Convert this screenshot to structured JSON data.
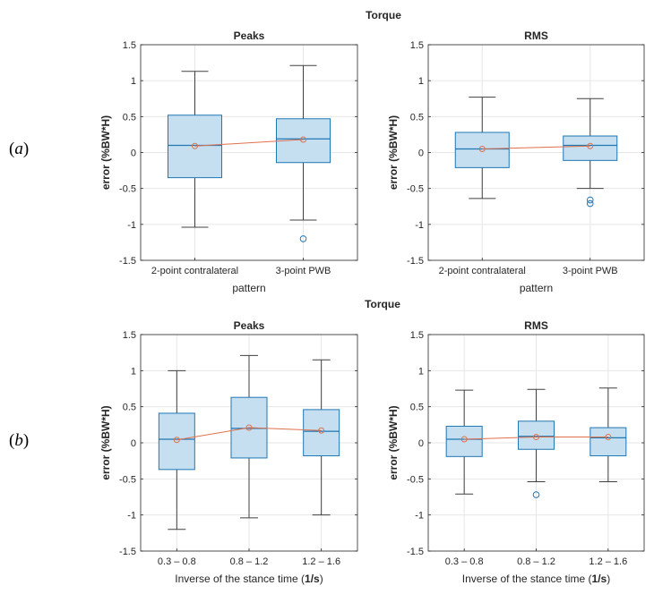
{
  "panels": [
    {
      "label": "(a)",
      "open": "(",
      "letter": "a",
      "close": ")"
    },
    {
      "label": "(b)",
      "open": "(",
      "letter": "b",
      "close": ")"
    }
  ],
  "colors": {
    "box_fill": "#c6dff0",
    "box_edge": "#1f77b4",
    "median": "#1f77b4",
    "whisker": "#404040",
    "mean_line": "#e0704a",
    "mean_marker": "#e0704a",
    "outlier": "#1f77b4",
    "grid": "#e6e6e6",
    "axis": "#262626"
  },
  "chart_data": [
    {
      "type": "box",
      "group_title": "Torque",
      "title": "Peaks",
      "xlabel": "pattern",
      "xlabel_parts": [
        "pattern"
      ],
      "ylabel": "error (%BW*H)",
      "ylim": [
        -1.5,
        1.5
      ],
      "yticks": [
        -1.5,
        -1,
        -0.5,
        0,
        0.5,
        1,
        1.5
      ],
      "ytick_labels": [
        "-1.5",
        "-1",
        "-0.5",
        "0",
        "0.5",
        "1",
        "1.5"
      ],
      "grid": true,
      "categories": [
        "2-point contralateral",
        "3-point PWB"
      ],
      "boxes": [
        {
          "whisker_low": -1.04,
          "q1": -0.35,
          "median": 0.1,
          "q3": 0.52,
          "whisker_high": 1.13,
          "mean": 0.09,
          "outliers": []
        },
        {
          "whisker_low": -0.94,
          "q1": -0.14,
          "median": 0.19,
          "q3": 0.47,
          "whisker_high": 1.21,
          "mean": 0.18,
          "outliers": [
            -1.2
          ]
        }
      ]
    },
    {
      "type": "box",
      "group_title": "Torque",
      "title": "RMS",
      "xlabel": "pattern",
      "xlabel_parts": [
        "pattern"
      ],
      "ylabel": "error (%BW*H)",
      "ylim": [
        -1.5,
        1.5
      ],
      "yticks": [
        -1.5,
        -1,
        -0.5,
        0,
        0.5,
        1,
        1.5
      ],
      "ytick_labels": [
        "-1.5",
        "-1",
        "-0.5",
        "0",
        "0.5",
        "1",
        "1.5"
      ],
      "grid": true,
      "categories": [
        "2-point contralateral",
        "3-point PWB"
      ],
      "boxes": [
        {
          "whisker_low": -0.64,
          "q1": -0.21,
          "median": 0.05,
          "q3": 0.28,
          "whisker_high": 0.77,
          "mean": 0.05,
          "outliers": []
        },
        {
          "whisker_low": -0.5,
          "q1": -0.11,
          "median": 0.1,
          "q3": 0.23,
          "whisker_high": 0.75,
          "mean": 0.09,
          "outliers": [
            -0.66,
            -0.71
          ]
        }
      ]
    },
    {
      "type": "box",
      "group_title": "Torque",
      "title": "Peaks",
      "xlabel": "Inverse of the stance time (1/s)",
      "xlabel_parts": [
        "Inverse of the stance time (",
        "1/s",
        ")"
      ],
      "ylabel": "error (%BW*H)",
      "ylim": [
        -1.5,
        1.5
      ],
      "yticks": [
        -1.5,
        -1,
        -0.5,
        0,
        0.5,
        1,
        1.5
      ],
      "ytick_labels": [
        "-1.5",
        "-1",
        "-0.5",
        "0",
        "0.5",
        "1",
        "1.5"
      ],
      "grid": true,
      "categories": [
        "0.3 – 0.8",
        "0.8 – 1.2",
        "1.2 – 1.6"
      ],
      "boxes": [
        {
          "whisker_low": -1.2,
          "q1": -0.37,
          "median": 0.05,
          "q3": 0.41,
          "whisker_high": 1.0,
          "mean": 0.04,
          "outliers": []
        },
        {
          "whisker_low": -1.04,
          "q1": -0.21,
          "median": 0.2,
          "q3": 0.63,
          "whisker_high": 1.21,
          "mean": 0.21,
          "outliers": []
        },
        {
          "whisker_low": -1.0,
          "q1": -0.18,
          "median": 0.16,
          "q3": 0.46,
          "whisker_high": 1.15,
          "mean": 0.17,
          "outliers": []
        }
      ]
    },
    {
      "type": "box",
      "group_title": "Torque",
      "title": "RMS",
      "xlabel": "Inverse of the stance time (1/s)",
      "xlabel_parts": [
        "Inverse of the stance time (",
        "1/s",
        ")"
      ],
      "ylabel": "error (%BW*H)",
      "ylim": [
        -1.5,
        1.5
      ],
      "yticks": [
        -1.5,
        -1,
        -0.5,
        0,
        0.5,
        1,
        1.5
      ],
      "ytick_labels": [
        "-1.5",
        "-1",
        "-0.5",
        "0",
        "0.5",
        "1",
        "1.5"
      ],
      "grid": true,
      "categories": [
        "0.3 – 0.8",
        "0.8 – 1.2",
        "1.2 – 1.6"
      ],
      "boxes": [
        {
          "whisker_low": -0.71,
          "q1": -0.19,
          "median": 0.05,
          "q3": 0.23,
          "whisker_high": 0.73,
          "mean": 0.05,
          "outliers": []
        },
        {
          "whisker_low": -0.54,
          "q1": -0.09,
          "median": 0.09,
          "q3": 0.3,
          "whisker_high": 0.74,
          "mean": 0.08,
          "outliers": [
            -0.72
          ]
        },
        {
          "whisker_low": -0.54,
          "q1": -0.18,
          "median": 0.07,
          "q3": 0.21,
          "whisker_high": 0.76,
          "mean": 0.08,
          "outliers": []
        }
      ]
    }
  ]
}
